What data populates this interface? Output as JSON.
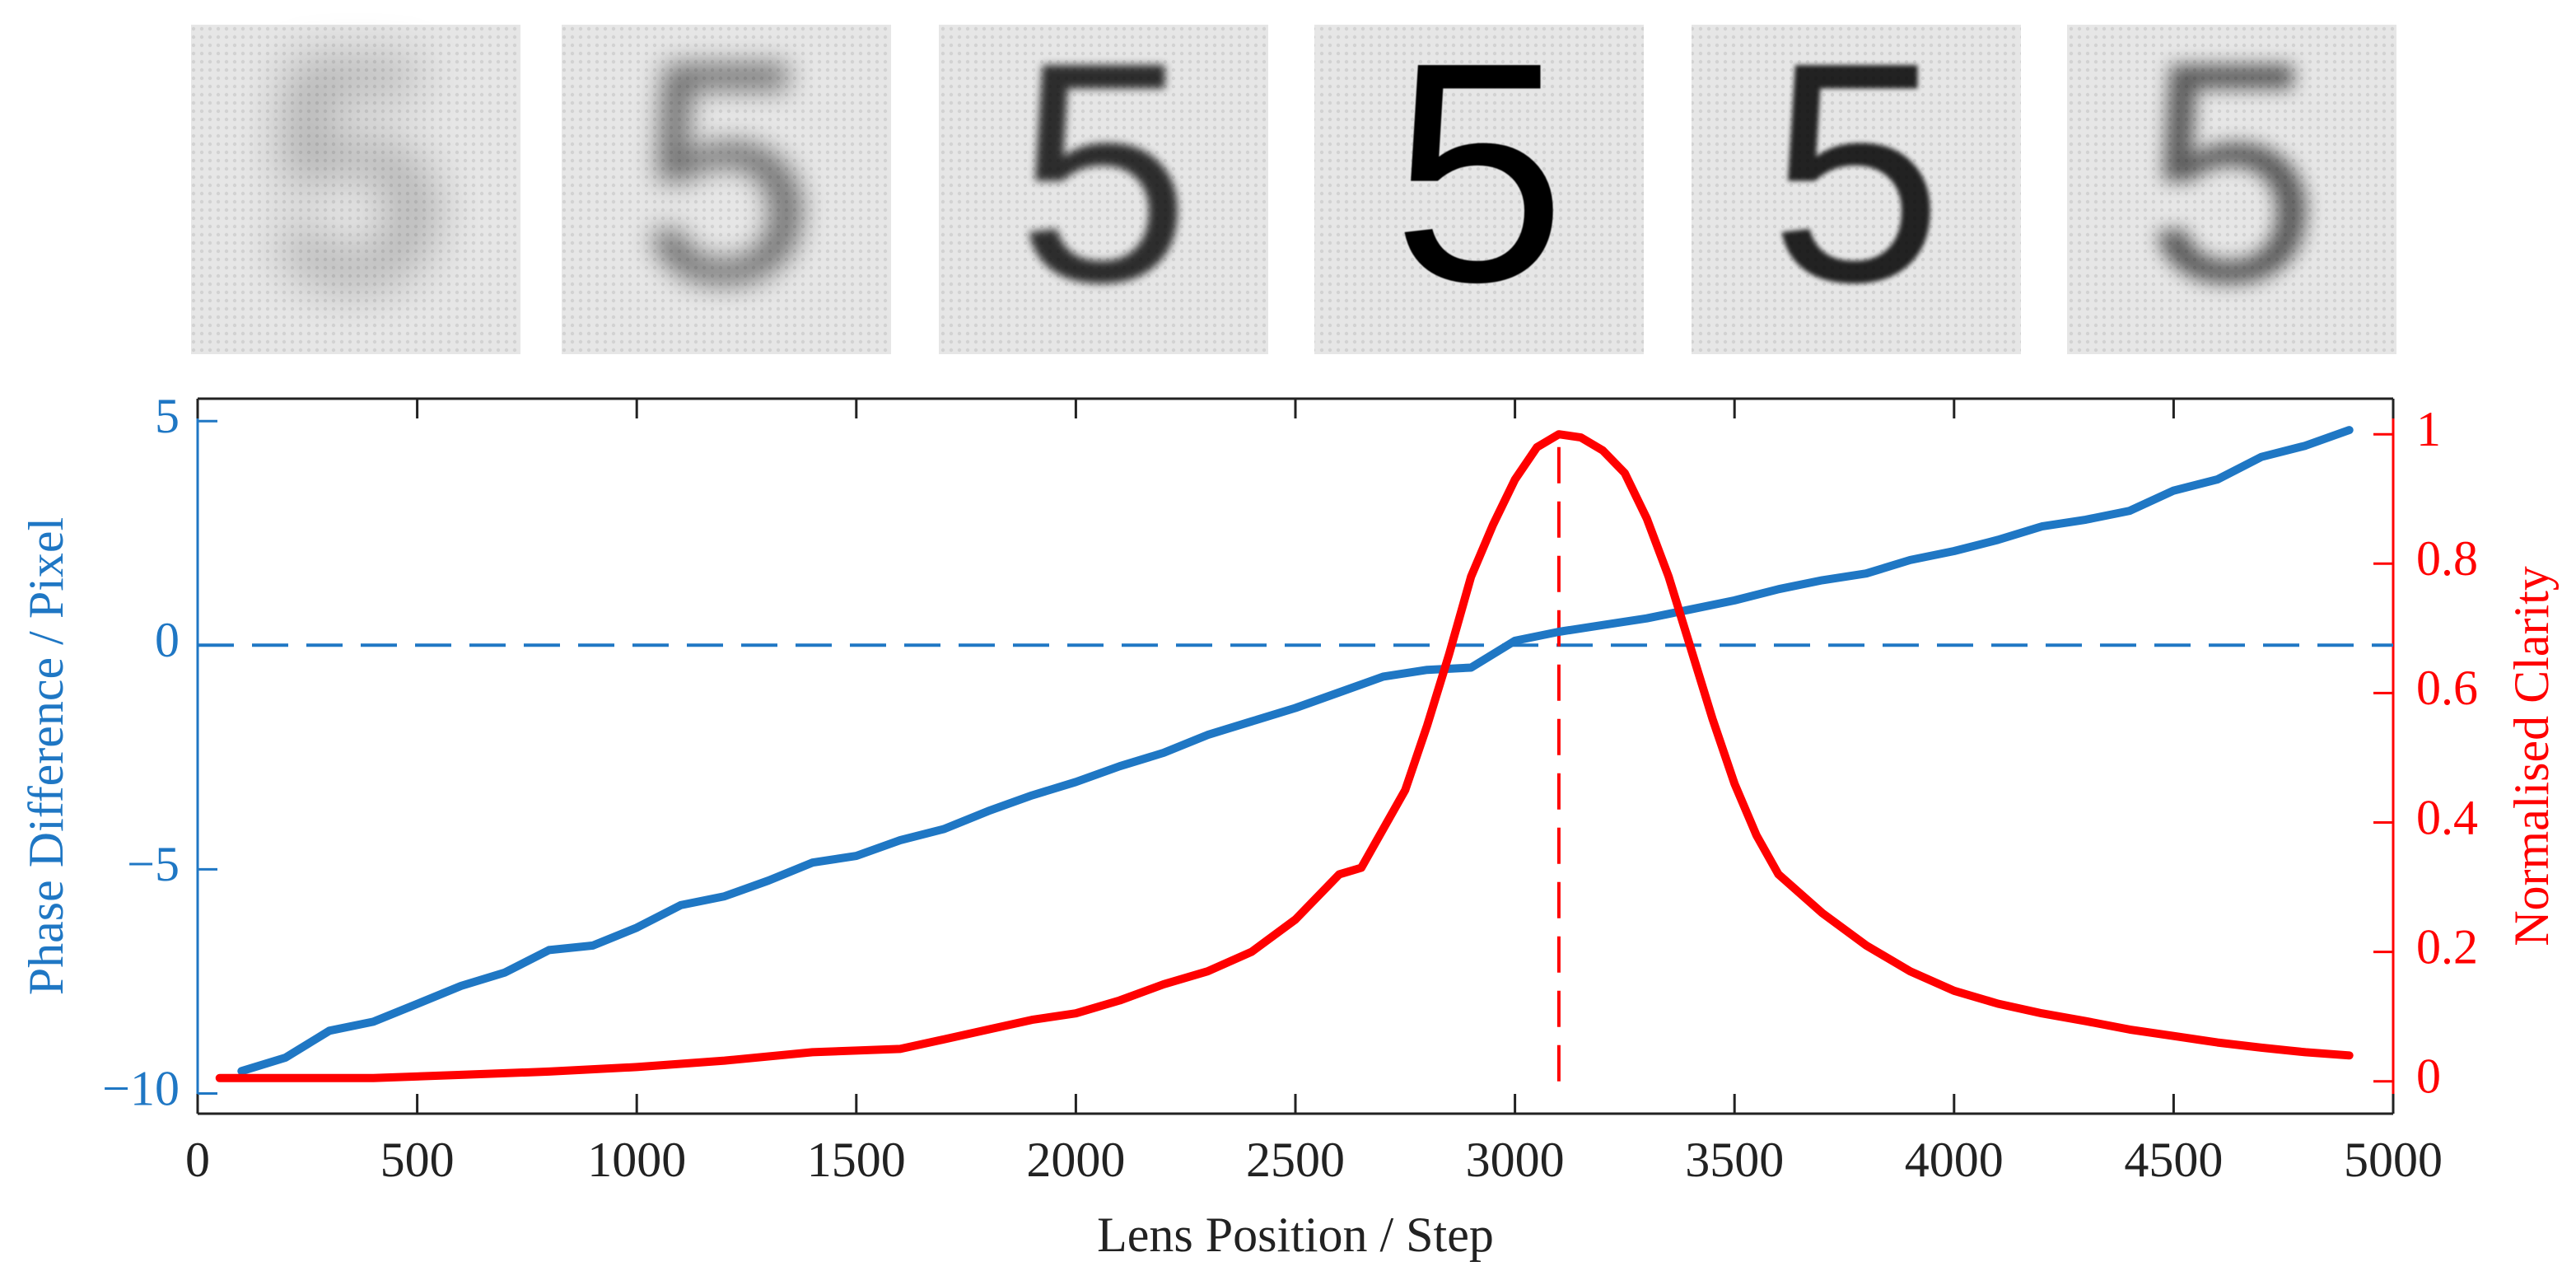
{
  "images": [
    "5",
    "5",
    "5",
    "5",
    "5",
    "5"
  ],
  "chart_data": {
    "type": "line",
    "xlabel": "Lens Position / Step",
    "ylabel": "Phase Difference / Pixel",
    "y2label": "Normalised Clarity",
    "xlim": [
      0,
      5000
    ],
    "xticks": [
      0,
      500,
      1000,
      1500,
      2000,
      2500,
      3000,
      3500,
      4000,
      4500,
      5000
    ],
    "ylim": [
      -10.45,
      5.5
    ],
    "yticks": [
      {
        "value": -10,
        "label": "−10"
      },
      {
        "value": -5,
        "label": "−5"
      },
      0,
      5
    ],
    "y2lim": [
      -0.05,
      1.055
    ],
    "y2ticks": [
      0,
      0.2,
      0.4,
      0.6,
      0.8,
      1
    ],
    "left_color": "#1f77c4",
    "right_color": "#ff0000",
    "series": [
      {
        "color": "#1f77c4",
        "axis": "y",
        "x": [
          100,
          200,
          300,
          400,
          500,
          600,
          700,
          800,
          900,
          1000,
          1100,
          1200,
          1300,
          1400,
          1500,
          1600,
          1700,
          1800,
          1900,
          2000,
          2100,
          2200,
          2300,
          2400,
          2500,
          2600,
          2700,
          2800,
          2900,
          3000,
          3100,
          3200,
          3300,
          3400,
          3500,
          3600,
          3700,
          3800,
          3900,
          4000,
          4100,
          4200,
          4300,
          4400,
          4500,
          4600,
          4700,
          4800,
          4900
        ],
        "values": [
          -9.5,
          -9.2,
          -8.6,
          -8.4,
          -8.0,
          -7.6,
          -7.3,
          -6.8,
          -6.7,
          -6.3,
          -5.8,
          -5.6,
          -5.25,
          -4.85,
          -4.7,
          -4.35,
          -4.1,
          -3.7,
          -3.35,
          -3.05,
          -2.7,
          -2.4,
          -2.0,
          -1.7,
          -1.4,
          -1.05,
          -0.7,
          -0.55,
          -0.5,
          0.1,
          0.3,
          0.45,
          0.6,
          0.8,
          1.0,
          1.25,
          1.45,
          1.6,
          1.9,
          2.1,
          2.35,
          2.65,
          2.8,
          3.0,
          3.45,
          3.7,
          4.2,
          4.45,
          4.8
        ]
      },
      {
        "color": "#ff0000",
        "axis": "y2",
        "x": [
          50,
          400,
          600,
          800,
          1000,
          1200,
          1400,
          1600,
          1700,
          1800,
          1900,
          2000,
          2100,
          2200,
          2300,
          2400,
          2500,
          2600,
          2650,
          2700,
          2750,
          2800,
          2850,
          2900,
          2950,
          3000,
          3050,
          3100,
          3150,
          3200,
          3250,
          3300,
          3350,
          3400,
          3450,
          3500,
          3550,
          3600,
          3700,
          3800,
          3900,
          4000,
          4100,
          4200,
          4300,
          4400,
          4500,
          4600,
          4700,
          4800,
          4900
        ],
        "values": [
          0.005,
          0.005,
          0.01,
          0.015,
          0.022,
          0.032,
          0.045,
          0.05,
          0.065,
          0.08,
          0.095,
          0.105,
          0.125,
          0.15,
          0.17,
          0.2,
          0.25,
          0.32,
          0.33,
          0.39,
          0.45,
          0.55,
          0.66,
          0.78,
          0.86,
          0.93,
          0.98,
          1.0,
          0.995,
          0.975,
          0.94,
          0.87,
          0.78,
          0.67,
          0.56,
          0.46,
          0.38,
          0.32,
          0.26,
          0.21,
          0.17,
          0.14,
          0.12,
          0.105,
          0.093,
          0.08,
          0.07,
          0.06,
          0.052,
          0.045,
          0.04
        ]
      }
    ],
    "hline": {
      "y": 0,
      "color": "#1f77c4"
    },
    "vline": {
      "x": 3100,
      "color": "#ff0000"
    }
  }
}
